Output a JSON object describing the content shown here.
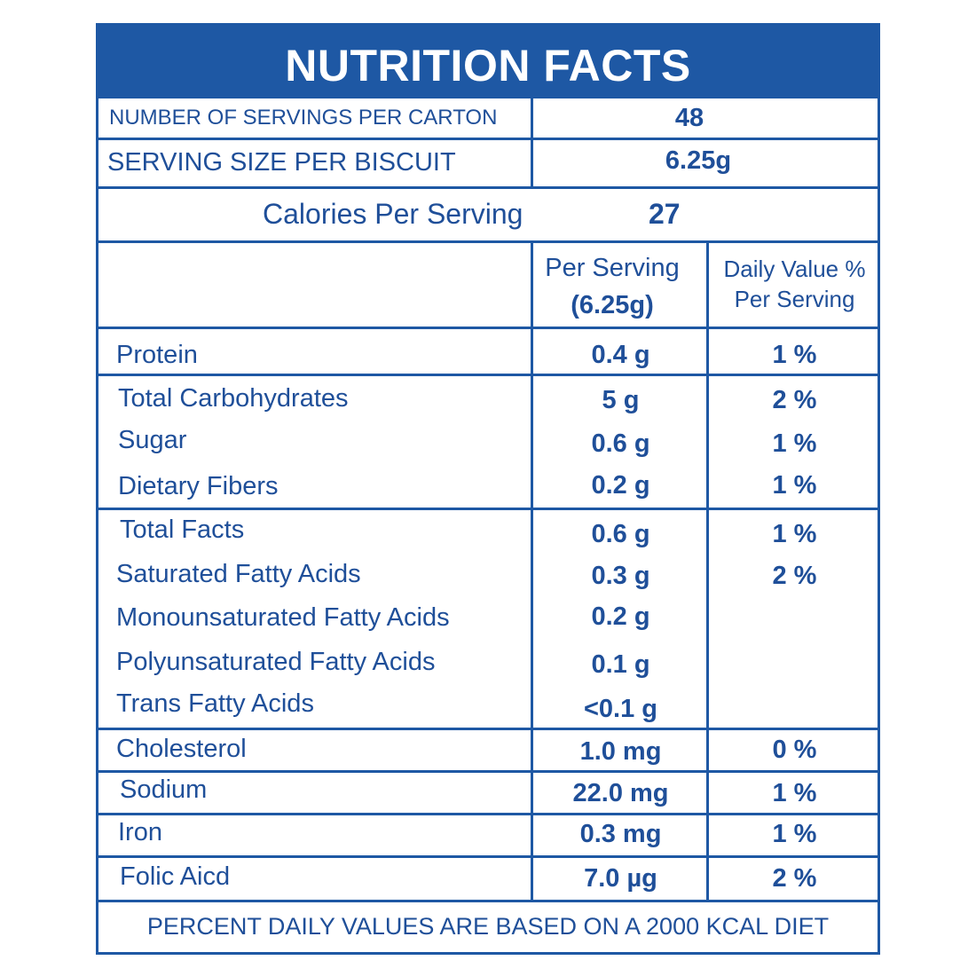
{
  "title": "NUTRITION FACTS",
  "servings_per_carton": {
    "label": "NUMBER OF SERVINGS PER CARTON",
    "value": "48"
  },
  "serving_size": {
    "label": "SERVING SIZE PER BISCUIT",
    "value": "6.25g"
  },
  "calories": {
    "label": "Calories Per Serving",
    "value": "27"
  },
  "columns": {
    "per_serving_line1": "Per Serving",
    "per_serving_line2": "(6.25g)",
    "daily_value_line1": "Daily Value %",
    "daily_value_line2": "Per Serving"
  },
  "nutrients": [
    {
      "name": "Protein",
      "amount": "0.4 g",
      "dv": "1 %"
    },
    {
      "name": "Total Carbohydrates",
      "amount": "5 g",
      "dv": "2 %"
    },
    {
      "name": "Sugar",
      "amount": "0.6 g",
      "dv": "1 %"
    },
    {
      "name": "Dietary Fibers",
      "amount": "0.2 g",
      "dv": "1 %"
    },
    {
      "name": "Total Facts",
      "amount": "0.6 g",
      "dv": "1 %"
    },
    {
      "name": "Saturated Fatty Acids",
      "amount": "0.3 g",
      "dv": "2 %"
    },
    {
      "name": "Monounsaturated Fatty Acids",
      "amount": "0.2 g",
      "dv": ""
    },
    {
      "name": "Polyunsaturated Fatty Acids",
      "amount": "0.1 g",
      "dv": ""
    },
    {
      "name": "Trans Fatty Acids",
      "amount": "<0.1 g",
      "dv": ""
    },
    {
      "name": "Cholesterol",
      "amount": "1.0 mg",
      "dv": "0 %"
    },
    {
      "name": "Sodium",
      "amount": "22.0 mg",
      "dv": "1 %"
    },
    {
      "name": "Iron",
      "amount": "0.3 mg",
      "dv": "1 %"
    },
    {
      "name": "Folic Aicd",
      "amount": "7.0 µg",
      "dv": "2 %"
    }
  ],
  "footer": "PERCENT DAILY VALUES ARE BASED ON A 2000 KCAL DIET",
  "colors": {
    "brand_blue": "#1e58a4",
    "text_blue": "#1f4f99"
  }
}
